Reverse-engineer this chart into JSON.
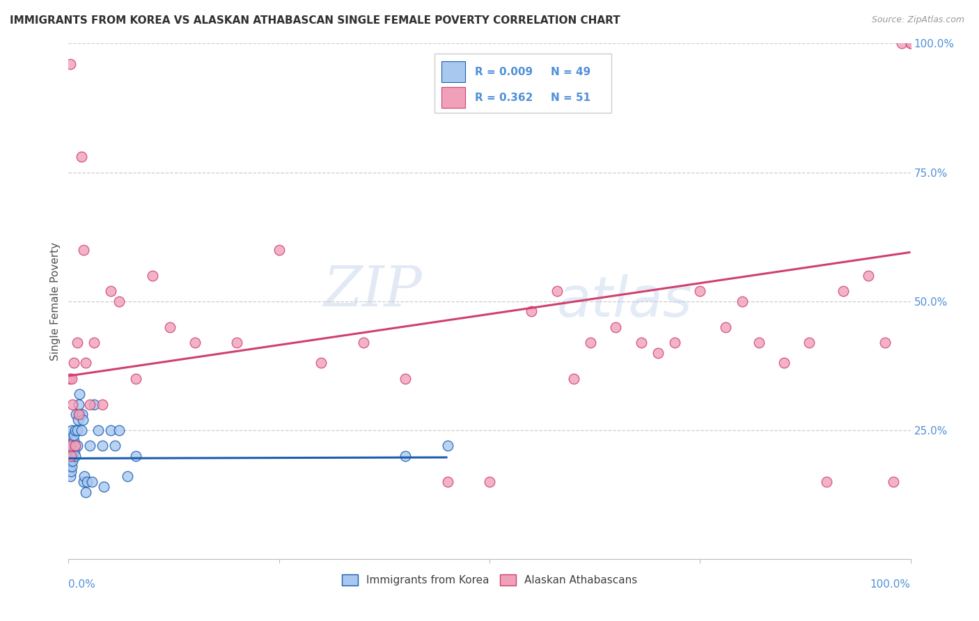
{
  "title": "IMMIGRANTS FROM KOREA VS ALASKAN ATHABASCAN SINGLE FEMALE POVERTY CORRELATION CHART",
  "source": "Source: ZipAtlas.com",
  "ylabel": "Single Female Poverty",
  "legend_label1": "Immigrants from Korea",
  "legend_label2": "Alaskan Athabascans",
  "r1": "0.009",
  "n1": "49",
  "r2": "0.362",
  "n2": "51",
  "color_blue": "#A8C8F0",
  "color_pink": "#F0A0B8",
  "line_blue": "#1A5CB0",
  "line_pink": "#D04070",
  "background": "#FFFFFF",
  "grid_color": "#C8C8C8",
  "title_color": "#303030",
  "right_axis_color": "#5090D8",
  "watermark_color": "#C8D8F0",
  "blue_x": [
    0.001,
    0.001,
    0.001,
    0.002,
    0.002,
    0.002,
    0.002,
    0.003,
    0.003,
    0.003,
    0.004,
    0.004,
    0.004,
    0.005,
    0.005,
    0.005,
    0.006,
    0.006,
    0.007,
    0.007,
    0.008,
    0.008,
    0.009,
    0.01,
    0.01,
    0.011,
    0.012,
    0.013,
    0.013,
    0.015,
    0.016,
    0.017,
    0.018,
    0.019,
    0.02,
    0.022,
    0.025,
    0.028,
    0.03,
    0.035,
    0.04,
    0.042,
    0.05,
    0.055,
    0.06,
    0.07,
    0.08,
    0.4,
    0.45
  ],
  "blue_y": [
    0.2,
    0.18,
    0.22,
    0.16,
    0.2,
    0.19,
    0.23,
    0.21,
    0.17,
    0.24,
    0.2,
    0.25,
    0.18,
    0.22,
    0.2,
    0.19,
    0.23,
    0.24,
    0.21,
    0.22,
    0.25,
    0.2,
    0.28,
    0.22,
    0.25,
    0.27,
    0.3,
    0.28,
    0.32,
    0.25,
    0.28,
    0.27,
    0.15,
    0.16,
    0.13,
    0.15,
    0.22,
    0.15,
    0.3,
    0.25,
    0.22,
    0.14,
    0.25,
    0.22,
    0.25,
    0.16,
    0.2,
    0.2,
    0.22
  ],
  "pink_x": [
    0.001,
    0.002,
    0.003,
    0.004,
    0.005,
    0.006,
    0.008,
    0.01,
    0.012,
    0.015,
    0.018,
    0.02,
    0.025,
    0.03,
    0.04,
    0.05,
    0.06,
    0.08,
    0.1,
    0.12,
    0.15,
    0.2,
    0.25,
    0.3,
    0.35,
    0.4,
    0.45,
    0.5,
    0.55,
    0.58,
    0.6,
    0.62,
    0.65,
    0.68,
    0.7,
    0.72,
    0.75,
    0.78,
    0.8,
    0.82,
    0.85,
    0.88,
    0.9,
    0.92,
    0.95,
    0.97,
    0.98,
    0.99,
    1.0,
    1.0,
    0.002
  ],
  "pink_y": [
    0.35,
    0.22,
    0.2,
    0.35,
    0.3,
    0.38,
    0.22,
    0.42,
    0.28,
    0.78,
    0.6,
    0.38,
    0.3,
    0.42,
    0.3,
    0.52,
    0.5,
    0.35,
    0.55,
    0.45,
    0.42,
    0.42,
    0.6,
    0.38,
    0.42,
    0.35,
    0.15,
    0.15,
    0.48,
    0.52,
    0.35,
    0.42,
    0.45,
    0.42,
    0.4,
    0.42,
    0.52,
    0.45,
    0.5,
    0.42,
    0.38,
    0.42,
    0.15,
    0.52,
    0.55,
    0.42,
    0.15,
    1.0,
    1.0,
    1.0,
    0.96
  ]
}
